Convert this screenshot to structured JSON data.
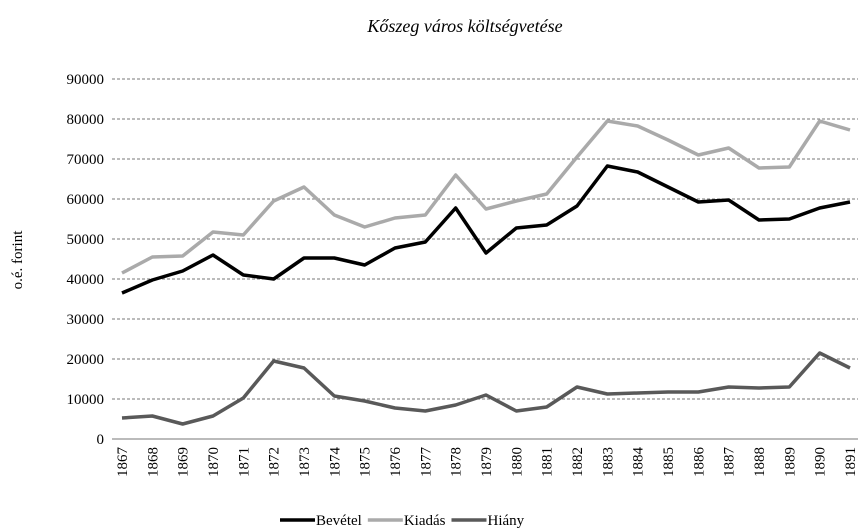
{
  "chart_data": {
    "type": "line",
    "title": "Kőszeg város költségvetése",
    "y_label": "o.é. forint",
    "categories": [
      "1867",
      "1868",
      "1869",
      "1870",
      "1871",
      "1872",
      "1873",
      "1874",
      "1875",
      "1876",
      "1877",
      "1878",
      "1879",
      "1880",
      "1881",
      "1882",
      "1883",
      "1884",
      "1885",
      "1886",
      "1887",
      "1888",
      "1889",
      "1890",
      "1891"
    ],
    "series": [
      {
        "name": "Bevétel",
        "color": "#000000",
        "values": [
          36500,
          39750,
          42000,
          46000,
          41000,
          40000,
          45250,
          45250,
          43500,
          47750,
          49250,
          57750,
          46500,
          52750,
          53500,
          58250,
          68250,
          66750,
          63000,
          59250,
          59750,
          54750,
          55000,
          57750,
          59250
        ]
      },
      {
        "name": "Kiadás",
        "color": "#aaaaaa",
        "values": [
          41500,
          45500,
          45750,
          51750,
          51000,
          59500,
          63000,
          56000,
          53000,
          55250,
          56000,
          66000,
          57500,
          59500,
          61250,
          70500,
          79500,
          78250,
          74750,
          71000,
          72750,
          67750,
          68000,
          79500,
          77250
        ]
      },
      {
        "name": "Hiány",
        "color": "#595959",
        "values": [
          5250,
          5750,
          3750,
          5750,
          10250,
          19500,
          17750,
          10750,
          9500,
          7750,
          7000,
          8500,
          11000,
          7000,
          8000,
          13000,
          11250,
          11500,
          11750,
          11750,
          13000,
          12750,
          13000,
          21500,
          17750
        ]
      }
    ],
    "ylim": [
      0,
      90000
    ],
    "yticks": [
      0,
      10000,
      20000,
      30000,
      40000,
      50000,
      60000,
      70000,
      80000,
      90000
    ],
    "grid": true,
    "legend": "bottom"
  }
}
